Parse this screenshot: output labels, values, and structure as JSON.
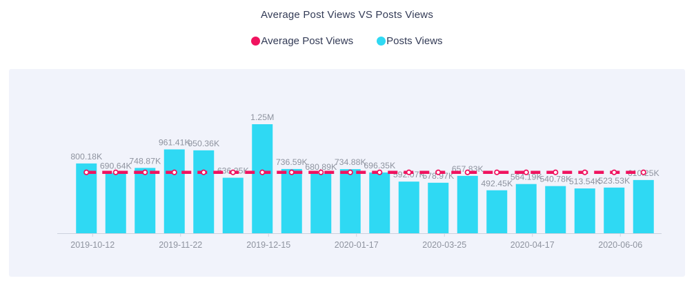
{
  "header": {
    "title": "Average Post Views VS Posts Views"
  },
  "legend": [
    {
      "label": "Average Post Views",
      "color": "#f0135f"
    },
    {
      "label": "Posts Views",
      "color": "#2fd9f3"
    }
  ],
  "colors": {
    "bar": "#2fd9f3",
    "line": "#f0135f",
    "value_label": "#8e939f",
    "axis_label": "#8e939f",
    "axis_line": "#ccd1dd",
    "plot_background": "#f1f3fb",
    "title_text": "#333b56"
  },
  "chart_data": {
    "type": "bar",
    "title": "Average Post Views VS Posts Views",
    "legend_position": "top",
    "grid": false,
    "plot_bg": "#f1f3fb",
    "ylim_k": [
      0,
      1250
    ],
    "bar_series": {
      "name": "Posts Views",
      "color": "#2fd9f3",
      "values_k": [
        800.18,
        690.64,
        748.87,
        961.41,
        950.36,
        636.25,
        1250,
        736.59,
        680.89,
        734.88,
        696.35,
        592.07,
        578.97,
        657.83,
        492.45,
        564.19,
        540.78,
        513.54,
        523.53,
        610.25
      ],
      "labels": [
        "800.18K",
        "690.64K",
        "748.87K",
        "961.41K",
        "950.36K",
        "636.25K",
        "1.25M",
        "736.59K",
        "680.89K",
        "734.88K",
        "696.35K",
        "592.07K",
        "578.97K",
        "657.83K",
        "492.45K",
        "564.19K",
        "540.78K",
        "513.54K",
        "523.53K",
        "610.25K"
      ]
    },
    "line_series": {
      "name": "Average Post Views",
      "color": "#f0135f",
      "style": "dashed",
      "marker": "hollow-circle",
      "value_k": 698
    },
    "x_ticks": [
      {
        "index": 0,
        "label": "2019-10-12"
      },
      {
        "index": 3,
        "label": "2019-11-22"
      },
      {
        "index": 6,
        "label": "2019-12-15"
      },
      {
        "index": 9,
        "label": "2020-01-17"
      },
      {
        "index": 12,
        "label": "2020-03-25"
      },
      {
        "index": 15,
        "label": "2020-04-17"
      },
      {
        "index": 18,
        "label": "2020-06-06"
      }
    ]
  }
}
